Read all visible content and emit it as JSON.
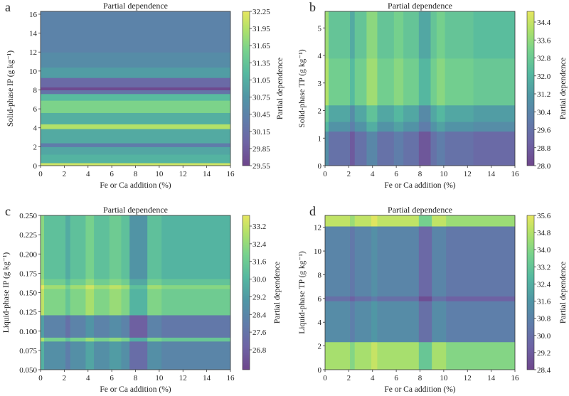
{
  "figure": {
    "panel_count": 4
  },
  "chart_data": [
    {
      "panel": "a",
      "type": "heatmap",
      "title": "Partial dependence",
      "xlabel": "Fe or Ca addition (%)",
      "ylabel": "Solid-phase IP (g kg⁻¹)",
      "colorbar_label": "Partial dependence",
      "xlim": [
        0,
        16
      ],
      "ylim": [
        0,
        16.3
      ],
      "xticks": [
        0,
        2,
        4,
        6,
        8,
        10,
        12,
        14,
        16
      ],
      "yticks": [
        0,
        2,
        4,
        6,
        8,
        10,
        12,
        14,
        16
      ],
      "ytick_labels": [
        "0",
        "2",
        "4",
        "6",
        "8",
        "10",
        "12",
        "14",
        "16"
      ],
      "colorbar_range": [
        29.55,
        32.25
      ],
      "colorbar_ticks": [
        "32.25",
        "31.95",
        "31.65",
        "31.35",
        "31.05",
        "30.75",
        "30.45",
        "30.15",
        "29.85",
        "29.55"
      ],
      "colormap": "viridis",
      "y_bands": [
        {
          "y0": 0,
          "y1": 0.3,
          "value": 32.1
        },
        {
          "y0": 0.3,
          "y1": 1.2,
          "value": 31.1
        },
        {
          "y0": 1.2,
          "y1": 2.0,
          "value": 30.95
        },
        {
          "y0": 2.0,
          "y1": 2.4,
          "value": 30.35
        },
        {
          "y0": 2.4,
          "y1": 3.9,
          "value": 31.0
        },
        {
          "y0": 3.9,
          "y1": 4.4,
          "value": 31.95
        },
        {
          "y0": 4.4,
          "y1": 5.6,
          "value": 31.05
        },
        {
          "y0": 5.6,
          "y1": 6.9,
          "value": 31.6
        },
        {
          "y0": 6.9,
          "y1": 7.6,
          "value": 31.2
        },
        {
          "y0": 7.6,
          "y1": 8.0,
          "value": 30.2
        },
        {
          "y0": 8.0,
          "y1": 8.3,
          "value": 29.6
        },
        {
          "y0": 8.3,
          "y1": 9.3,
          "value": 30.05
        },
        {
          "y0": 9.3,
          "y1": 10.4,
          "value": 30.85
        },
        {
          "y0": 10.4,
          "y1": 12.0,
          "value": 30.6
        },
        {
          "y0": 12.0,
          "y1": 16.3,
          "value": 30.45
        }
      ],
      "x_bands": []
    },
    {
      "panel": "b",
      "type": "heatmap",
      "title": "Partial dependence",
      "xlabel": "Fe or Ca addition (%)",
      "ylabel": "Solid-phase TP (g kg⁻¹)",
      "colorbar_label": "Partial dependence",
      "xlim": [
        0,
        16
      ],
      "ylim": [
        0,
        5.6
      ],
      "xticks": [
        0,
        2,
        4,
        6,
        8,
        10,
        12,
        14,
        16
      ],
      "yticks": [
        0,
        1,
        2,
        3,
        4,
        5
      ],
      "ytick_labels": [
        "0",
        "1",
        "2",
        "3",
        "4",
        "5"
      ],
      "colorbar_range": [
        28.0,
        34.9
      ],
      "colorbar_ticks": [
        "34.4",
        "33.6",
        "32.8",
        "32.0",
        "31.2",
        "30.4",
        "29.6",
        "28.8",
        "28.0"
      ],
      "colormap": "viridis",
      "y_bands": [
        {
          "y0": 0,
          "y1": 1.25,
          "value": 29.6
        },
        {
          "y0": 1.25,
          "y1": 1.6,
          "value": 31.0
        },
        {
          "y0": 1.6,
          "y1": 2.2,
          "value": 31.6
        },
        {
          "y0": 2.2,
          "y1": 3.9,
          "value": 33.0
        },
        {
          "y0": 3.9,
          "y1": 5.6,
          "value": 32.6
        }
      ],
      "x_bands": [
        {
          "x0": 0,
          "x1": 0.3,
          "delta": 1.2
        },
        {
          "x0": 2.1,
          "x1": 2.5,
          "delta": -0.9
        },
        {
          "x0": 3.5,
          "x1": 4.4,
          "delta": 0.9
        },
        {
          "x0": 5.8,
          "x1": 6.6,
          "delta": 0.5
        },
        {
          "x0": 7.9,
          "x1": 8.9,
          "delta": -1.0
        },
        {
          "x0": 9.4,
          "x1": 10.1,
          "delta": 0.5
        },
        {
          "x0": 12.5,
          "x1": 16,
          "delta": -0.3
        }
      ]
    },
    {
      "panel": "c",
      "type": "heatmap",
      "title": "Partial dependence",
      "xlabel": "Fe or Ca addition (%)",
      "ylabel": "Liquid-phase IP (g kg⁻¹)",
      "colorbar_label": "Partial dependence",
      "xlim": [
        0,
        16
      ],
      "ylim": [
        0.05,
        0.25
      ],
      "xticks": [
        0,
        2,
        4,
        6,
        8,
        10,
        12,
        14,
        16
      ],
      "yticks": [
        0.05,
        0.075,
        0.1,
        0.125,
        0.15,
        0.175,
        0.2,
        0.225,
        0.25
      ],
      "ytick_labels": [
        "0.050",
        "0.075",
        "0.100",
        "0.125",
        "0.150",
        "0.175",
        "0.200",
        "0.225",
        "0.250"
      ],
      "colorbar_range": [
        26.0,
        33.8
      ],
      "colorbar_ticks": [
        "33.2",
        "32.4",
        "31.6",
        "30.0",
        "29.2",
        "28.4",
        "27.6",
        "26.8"
      ],
      "colormap": "viridis",
      "y_bands": [
        {
          "y0": 0.05,
          "y1": 0.087,
          "value": 29.2
        },
        {
          "y0": 0.087,
          "y1": 0.092,
          "value": 31.8
        },
        {
          "y0": 0.092,
          "y1": 0.121,
          "value": 28.6
        },
        {
          "y0": 0.121,
          "y1": 0.155,
          "value": 32.0
        },
        {
          "y0": 0.155,
          "y1": 0.16,
          "value": 32.6
        },
        {
          "y0": 0.16,
          "y1": 0.168,
          "value": 31.6
        },
        {
          "y0": 0.168,
          "y1": 0.25,
          "value": 31.0
        }
      ],
      "x_bands": [
        {
          "x0": 0,
          "x1": 0.3,
          "delta": 1.2
        },
        {
          "x0": 2.1,
          "x1": 2.5,
          "delta": -0.8
        },
        {
          "x0": 3.8,
          "x1": 4.5,
          "delta": 0.8
        },
        {
          "x0": 5.8,
          "x1": 6.8,
          "delta": 0.5
        },
        {
          "x0": 7.5,
          "x1": 9.0,
          "delta": -1.6
        },
        {
          "x0": 10.2,
          "x1": 16,
          "delta": -0.5
        }
      ]
    },
    {
      "panel": "d",
      "type": "heatmap",
      "title": "Partial dependence",
      "xlabel": "Fe or Ca addition (%)",
      "ylabel": "Liquid-phase TP (g kg⁻¹)",
      "colorbar_label": "Partial dependence",
      "xlim": [
        0,
        16
      ],
      "ylim": [
        0,
        13
      ],
      "xticks": [
        0,
        2,
        4,
        6,
        8,
        10,
        12,
        14,
        16
      ],
      "yticks": [
        0,
        2,
        4,
        6,
        8,
        10,
        12
      ],
      "ytick_labels": [
        "0",
        "2",
        "4",
        "6",
        "8",
        "10",
        "12"
      ],
      "colorbar_range": [
        28.4,
        35.6
      ],
      "colorbar_ticks": [
        "35.6",
        "34.8",
        "34.0",
        "33.2",
        "32.4",
        "31.6",
        "30.8",
        "30.0",
        "29.2",
        "28.4"
      ],
      "colormap": "viridis",
      "y_bands": [
        {
          "y0": 0,
          "y1": 2.35,
          "value": 34.6
        },
        {
          "y0": 2.35,
          "y1": 5.8,
          "value": 31.2
        },
        {
          "y0": 5.8,
          "y1": 6.2,
          "value": 30.0
        },
        {
          "y0": 6.2,
          "y1": 12.1,
          "value": 30.9
        },
        {
          "y0": 12.1,
          "y1": 13,
          "value": 35.0
        }
      ],
      "x_bands": [
        {
          "x0": 2.1,
          "x1": 2.5,
          "delta": -0.6
        },
        {
          "x0": 3.9,
          "x1": 4.4,
          "delta": 0.5
        },
        {
          "x0": 7.9,
          "x1": 9.0,
          "delta": -1.3
        },
        {
          "x0": 10.2,
          "x1": 16,
          "delta": -0.6
        }
      ]
    }
  ]
}
